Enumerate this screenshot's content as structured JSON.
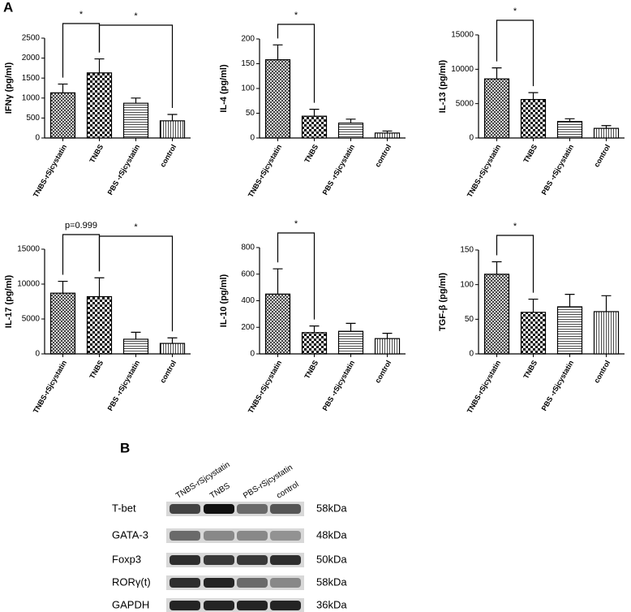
{
  "panels": [
    "A",
    "B"
  ],
  "chart_data": [
    {
      "type": "bar",
      "ylabel": "IFNγ (pg/ml)",
      "categories": [
        "TNBS-rSjcystatin",
        "TNBS",
        "PBS -rSjcystatin",
        "control"
      ],
      "values": [
        1130,
        1630,
        870,
        430
      ],
      "errors": [
        220,
        350,
        130,
        160
      ],
      "color": "#000000",
      "ylim": [
        0,
        2500
      ],
      "yticks": [
        0,
        500,
        1000,
        1500,
        2000,
        2500
      ],
      "annotations": [
        {
          "text": "*",
          "between": [
            "TNBS-rSjcystatin",
            "TNBS"
          ]
        },
        {
          "text": "*",
          "between": [
            "TNBS",
            "control"
          ]
        }
      ]
    },
    {
      "type": "bar",
      "ylabel": "IL-4 (pg/ml)",
      "categories": [
        "TNBS-rSjcystatin",
        "TNBS",
        "PBS -rSjcystatin",
        "control"
      ],
      "values": [
        158,
        44,
        30,
        10
      ],
      "errors": [
        30,
        14,
        8,
        4
      ],
      "color": "#000000",
      "ylim": [
        0,
        200
      ],
      "yticks": [
        0,
        50,
        100,
        150,
        200
      ],
      "annotations": [
        {
          "text": "*",
          "between": [
            "TNBS-rSjcystatin",
            "TNBS"
          ]
        }
      ]
    },
    {
      "type": "bar",
      "ylabel": "IL-13 (pg/ml)",
      "categories": [
        "TNBS-rSjcystatin",
        "TNBS",
        "PBS -rSjcystatin",
        "control"
      ],
      "values": [
        8600,
        5600,
        2400,
        1400
      ],
      "errors": [
        1600,
        1000,
        400,
        400
      ],
      "color": "#000000",
      "ylim": [
        0,
        15000
      ],
      "yticks": [
        0,
        5000,
        10000,
        15000
      ],
      "annotations": [
        {
          "text": "*",
          "between": [
            "TNBS-rSjcystatin",
            "TNBS"
          ]
        }
      ]
    },
    {
      "type": "bar",
      "ylabel": "IL-17 (pg/ml)",
      "categories": [
        "TNBS-rSjcystatin",
        "TNBS",
        "PBS -rSjcystatin",
        "control"
      ],
      "values": [
        8700,
        8200,
        2100,
        1500
      ],
      "errors": [
        1700,
        2700,
        1000,
        800
      ],
      "color": "#000000",
      "ylim": [
        0,
        15000
      ],
      "yticks": [
        0,
        5000,
        10000,
        15000
      ],
      "annotations": [
        {
          "text": "p=0.999",
          "between": [
            "TNBS-rSjcystatin",
            "TNBS"
          ]
        },
        {
          "text": "*",
          "between": [
            "TNBS",
            "control"
          ]
        }
      ]
    },
    {
      "type": "bar",
      "ylabel": "IL-10 (pg/ml)",
      "categories": [
        "TNBS-rSjcystatin",
        "TNBS",
        "PBS -rSjcystatin",
        "control"
      ],
      "values": [
        450,
        160,
        170,
        115
      ],
      "errors": [
        190,
        50,
        60,
        40
      ],
      "color": "#000000",
      "ylim": [
        0,
        800
      ],
      "yticks": [
        0,
        200,
        400,
        600,
        800
      ],
      "annotations": [
        {
          "text": "*",
          "between": [
            "TNBS-rSjcystatin",
            "TNBS"
          ]
        }
      ]
    },
    {
      "type": "bar",
      "ylabel": "TGF-β (pg/ml)",
      "categories": [
        "TNBS-rSjcystatin",
        "TNBS",
        "PBS -rSjcystatin",
        "control"
      ],
      "values": [
        115,
        60,
        68,
        61
      ],
      "errors": [
        18,
        19,
        18,
        23
      ],
      "color": "#000000",
      "ylim": [
        0,
        150
      ],
      "yticks": [
        0,
        50,
        100,
        150
      ],
      "annotations": [
        {
          "text": "*",
          "between": [
            "TNBS-rSjcystatin",
            "TNBS"
          ]
        }
      ]
    }
  ],
  "blot": {
    "lanes": [
      "TNBS-rSjcystatin",
      "TNBS",
      "PBS-rSjcystatin",
      "control"
    ],
    "rows": [
      {
        "protein": "T-bet",
        "size": "58kDa"
      },
      {
        "protein": "GATA-3",
        "size": "48kDa"
      },
      {
        "protein": "Foxp3",
        "size": "50kDa"
      },
      {
        "protein": "RORγ(t)",
        "size": "58kDa"
      },
      {
        "protein": "GAPDH",
        "size": "36kDa"
      }
    ]
  }
}
